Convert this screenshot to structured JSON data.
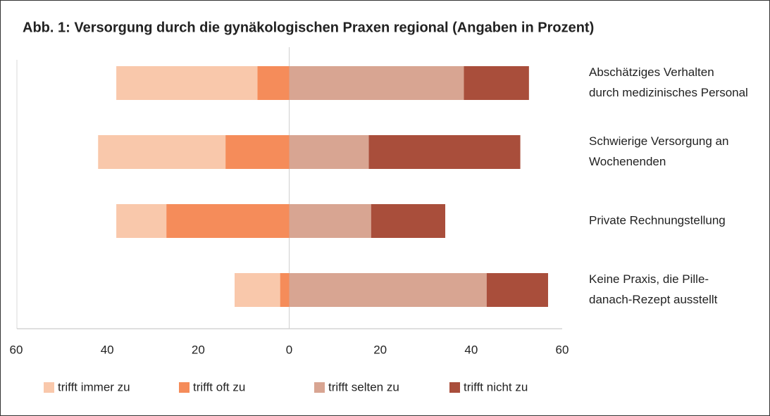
{
  "chart_data": {
    "type": "diverging_bar",
    "title": "Abb. 1: Versorgung durch die gynäkologischen Praxen regional (Angaben in Prozent)",
    "categories": [
      [
        "Abschätziges Verhalten",
        "durch medizinisches Personal"
      ],
      [
        "Schwierige Versorgung an",
        "Wochenenden"
      ],
      [
        "Private Rechnungstellung"
      ],
      [
        "Keine Praxis, die Pille-",
        "danach-Rezept ausstellt"
      ]
    ],
    "series": [
      {
        "name": "trifft immer zu",
        "color": "#f9c8ab",
        "values": [
          -31,
          -28,
          -11,
          -10
        ]
      },
      {
        "name": "trifft oft zu",
        "color": "#f58c5a",
        "values": [
          -7,
          -14,
          -27,
          -2
        ]
      },
      {
        "name": "trifft selten zu",
        "color": "#d8a592",
        "values": [
          38.4,
          17.5,
          18,
          43.4
        ]
      },
      {
        "name": "trifft nicht zu",
        "color": "#a94e3b",
        "values": [
          14.3,
          33.3,
          16.3,
          13.5
        ]
      }
    ],
    "xlim": [
      -60,
      60
    ],
    "xticks": [
      {
        "value": -60,
        "label": "60"
      },
      {
        "value": -40,
        "label": "40"
      },
      {
        "value": -20,
        "label": "20"
      },
      0,
      20,
      40,
      60
    ]
  }
}
